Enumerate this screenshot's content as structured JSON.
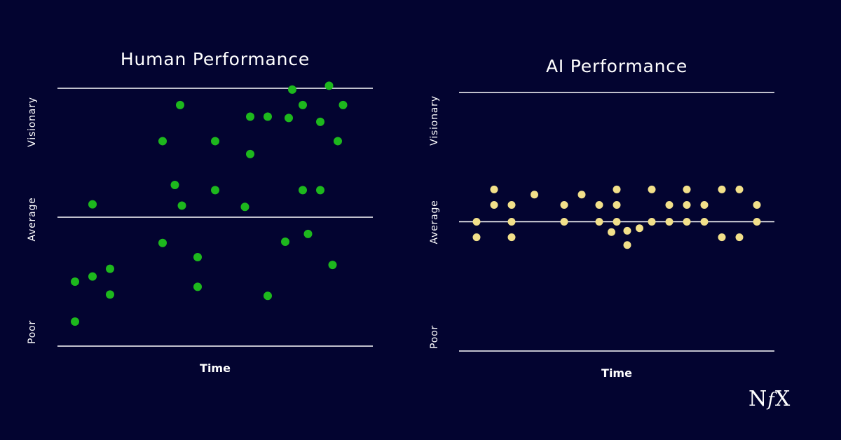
{
  "chart_data": [
    {
      "type": "scatter",
      "title": "Human Performance",
      "xlabel": "Time",
      "ylabel_ticks": [
        "Poor",
        "Average",
        "Visionary"
      ],
      "ylim": [
        0,
        2
      ],
      "xlim": [
        0,
        18
      ],
      "point_color": "#1db81d",
      "points": [
        {
          "x": 1.0,
          "y": 0.19
        },
        {
          "x": 1.0,
          "y": 0.5
        },
        {
          "x": 2.0,
          "y": 1.1
        },
        {
          "x": 2.0,
          "y": 0.54
        },
        {
          "x": 3.0,
          "y": 0.6
        },
        {
          "x": 3.0,
          "y": 0.4
        },
        {
          "x": 6.0,
          "y": 1.59
        },
        {
          "x": 6.0,
          "y": 0.8
        },
        {
          "x": 6.7,
          "y": 1.25
        },
        {
          "x": 7.0,
          "y": 1.87
        },
        {
          "x": 7.1,
          "y": 1.09
        },
        {
          "x": 8.0,
          "y": 0.69
        },
        {
          "x": 8.0,
          "y": 0.46
        },
        {
          "x": 9.0,
          "y": 1.59
        },
        {
          "x": 9.0,
          "y": 1.21
        },
        {
          "x": 10.7,
          "y": 1.08
        },
        {
          "x": 11.0,
          "y": 1.78
        },
        {
          "x": 11.0,
          "y": 1.49
        },
        {
          "x": 12.0,
          "y": 1.78
        },
        {
          "x": 12.0,
          "y": 0.39
        },
        {
          "x": 13.0,
          "y": 0.81
        },
        {
          "x": 13.2,
          "y": 1.77
        },
        {
          "x": 13.4,
          "y": 1.99
        },
        {
          "x": 14.0,
          "y": 1.87
        },
        {
          "x": 14.0,
          "y": 1.21
        },
        {
          "x": 14.3,
          "y": 0.87
        },
        {
          "x": 15.0,
          "y": 1.74
        },
        {
          "x": 15.0,
          "y": 1.21
        },
        {
          "x": 15.7,
          "y": 0.63
        },
        {
          "x": 16.0,
          "y": 1.59
        },
        {
          "x": 15.5,
          "y": 2.02
        },
        {
          "x": 16.3,
          "y": 1.87
        }
      ]
    },
    {
      "type": "scatter",
      "title": "AI Performance",
      "xlabel": "Time",
      "ylabel_ticks": [
        "Poor",
        "Average",
        "Visionary"
      ],
      "ylim": [
        0,
        2
      ],
      "xlim": [
        0,
        18
      ],
      "point_color": "#f2e08a",
      "points": [
        {
          "x": 1.0,
          "y": 1.0
        },
        {
          "x": 1.0,
          "y": 0.88
        },
        {
          "x": 2.0,
          "y": 1.25
        },
        {
          "x": 2.0,
          "y": 1.13
        },
        {
          "x": 3.0,
          "y": 1.13
        },
        {
          "x": 3.0,
          "y": 1.0
        },
        {
          "x": 3.0,
          "y": 0.88
        },
        {
          "x": 4.3,
          "y": 1.21
        },
        {
          "x": 6.0,
          "y": 1.13
        },
        {
          "x": 6.0,
          "y": 1.0
        },
        {
          "x": 7.0,
          "y": 1.21
        },
        {
          "x": 8.0,
          "y": 1.13
        },
        {
          "x": 8.0,
          "y": 1.0
        },
        {
          "x": 8.7,
          "y": 0.92
        },
        {
          "x": 9.0,
          "y": 1.25
        },
        {
          "x": 9.0,
          "y": 1.13
        },
        {
          "x": 9.0,
          "y": 1.0
        },
        {
          "x": 9.6,
          "y": 0.93
        },
        {
          "x": 9.6,
          "y": 0.82
        },
        {
          "x": 10.3,
          "y": 0.95
        },
        {
          "x": 11.0,
          "y": 1.25
        },
        {
          "x": 11.0,
          "y": 1.0
        },
        {
          "x": 12.0,
          "y": 1.13
        },
        {
          "x": 12.0,
          "y": 1.0
        },
        {
          "x": 13.0,
          "y": 1.25
        },
        {
          "x": 13.0,
          "y": 1.13
        },
        {
          "x": 13.0,
          "y": 1.0
        },
        {
          "x": 14.0,
          "y": 1.13
        },
        {
          "x": 14.0,
          "y": 1.0
        },
        {
          "x": 15.0,
          "y": 1.25
        },
        {
          "x": 15.0,
          "y": 0.88
        },
        {
          "x": 16.0,
          "y": 1.25
        },
        {
          "x": 16.0,
          "y": 0.88
        },
        {
          "x": 17.0,
          "y": 1.13
        },
        {
          "x": 17.0,
          "y": 1.0
        }
      ]
    }
  ],
  "logo": {
    "part1": "N",
    "part2": "f",
    "part3": "X"
  }
}
